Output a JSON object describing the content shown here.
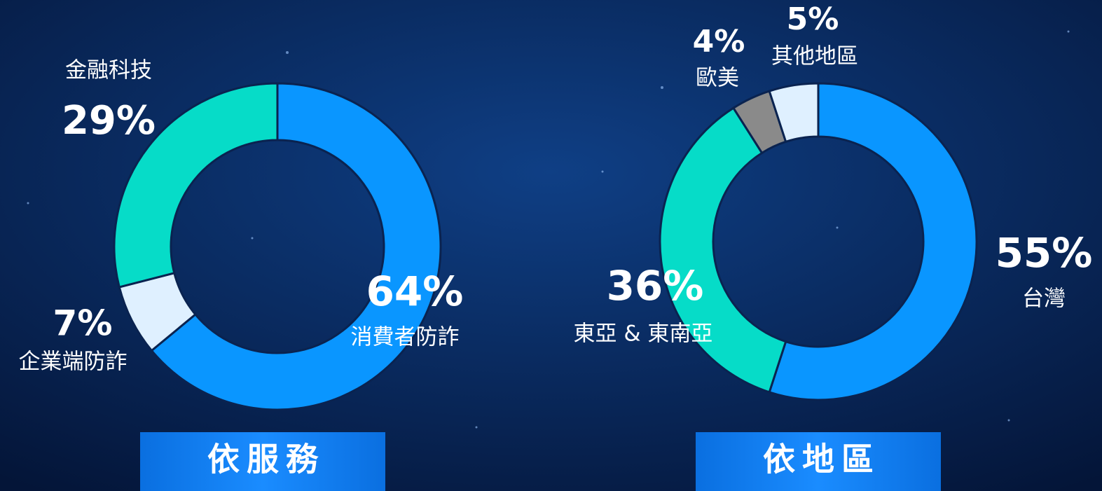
{
  "chart_data": [
    {
      "type": "donut",
      "title": "依服務",
      "categories": [
        "消費者防詐",
        "企業端防詐",
        "金融科技"
      ],
      "values": [
        64,
        7,
        29
      ],
      "value_labels": [
        "64%",
        "7%",
        "29%"
      ],
      "colors": [
        "#0a96ff",
        "#dff0ff",
        "#06dcc8"
      ]
    },
    {
      "type": "donut",
      "title": "依地區",
      "categories": [
        "台灣",
        "東亞 & 東南亞",
        "歐美",
        "其他地區"
      ],
      "values": [
        55,
        36,
        4,
        5
      ],
      "value_labels": [
        "55%",
        "36%",
        "4%",
        "5%"
      ],
      "colors": [
        "#0a96ff",
        "#06dcc8",
        "#8a8a8a",
        "#dff0ff"
      ]
    }
  ]
}
